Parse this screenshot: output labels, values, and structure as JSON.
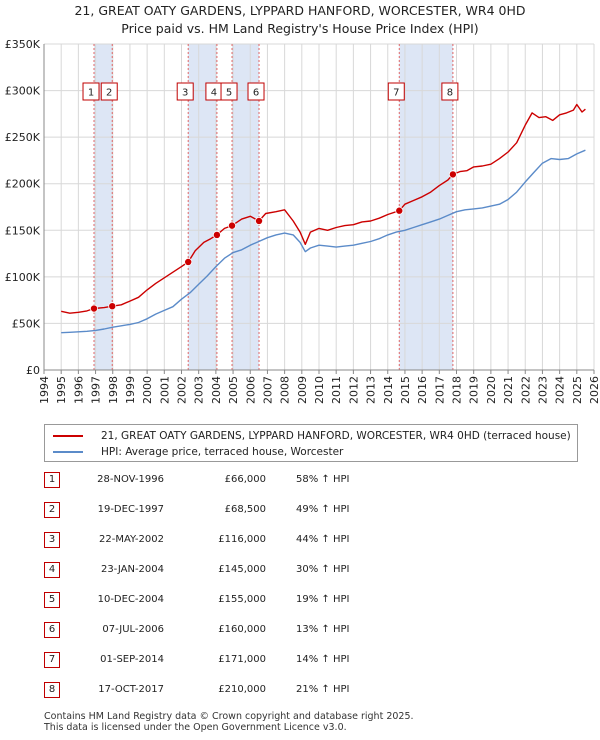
{
  "title_line1": "21, GREAT OATY GARDENS, LYPPARD HANFORD, WORCESTER, WR4 0HD",
  "title_line2": "Price paid vs. HM Land Registry's House Price Index (HPI)",
  "legend": {
    "property_label": "21, GREAT OATY GARDENS, LYPPARD HANFORD, WORCESTER, WR4 0HD (terraced house)",
    "hpi_label": "HPI: Average price, terraced house, Worcester"
  },
  "colors": {
    "property": "#cc0000",
    "hpi": "#5b8bc9",
    "shade": "#dde6f5",
    "vline": "#e06666"
  },
  "sales": [
    {
      "num": "1",
      "date": "28-NOV-1996",
      "price": "£66,000",
      "hpi": "58% ↑ HPI"
    },
    {
      "num": "2",
      "date": "19-DEC-1997",
      "price": "£68,500",
      "hpi": "49% ↑ HPI"
    },
    {
      "num": "3",
      "date": "22-MAY-2002",
      "price": "£116,000",
      "hpi": "44% ↑ HPI"
    },
    {
      "num": "4",
      "date": "23-JAN-2004",
      "price": "£145,000",
      "hpi": "30% ↑ HPI"
    },
    {
      "num": "5",
      "date": "10-DEC-2004",
      "price": "£155,000",
      "hpi": "19% ↑ HPI"
    },
    {
      "num": "6",
      "date": "07-JUL-2006",
      "price": "£160,000",
      "hpi": "13% ↑ HPI"
    },
    {
      "num": "7",
      "date": "01-SEP-2014",
      "price": "£171,000",
      "hpi": "14% ↑ HPI"
    },
    {
      "num": "8",
      "date": "17-OCT-2017",
      "price": "£210,000",
      "hpi": "21% ↑ HPI"
    }
  ],
  "footer_line1": "Contains HM Land Registry data © Crown copyright and database right 2025.",
  "footer_line2": "This data is licensed under the Open Government Licence v3.0.",
  "chart_data": {
    "type": "line",
    "title": "21, GREAT OATY GARDENS, LYPPARD HANFORD, WORCESTER, WR4 0HD — Price paid vs. HM Land Registry's House Price Index (HPI)",
    "xlabel": "",
    "ylabel": "",
    "xlim": [
      1994,
      2026
    ],
    "ylim": [
      0,
      350000
    ],
    "x_ticks": [
      "1994",
      "1995",
      "1996",
      "1997",
      "1998",
      "1999",
      "2000",
      "2001",
      "2002",
      "2003",
      "2004",
      "2005",
      "2006",
      "2007",
      "2008",
      "2009",
      "2010",
      "2011",
      "2012",
      "2013",
      "2014",
      "2015",
      "2016",
      "2017",
      "2018",
      "2019",
      "2020",
      "2021",
      "2022",
      "2023",
      "2024",
      "2025",
      "2026"
    ],
    "y_ticks": [
      {
        "value": 0,
        "label": "£0"
      },
      {
        "value": 50000,
        "label": "£50K"
      },
      {
        "value": 100000,
        "label": "£100K"
      },
      {
        "value": 150000,
        "label": "£150K"
      },
      {
        "value": 200000,
        "label": "£200K"
      },
      {
        "value": 250000,
        "label": "£250K"
      },
      {
        "value": 300000,
        "label": "£300K"
      },
      {
        "value": 350000,
        "label": "£350K"
      }
    ],
    "grid": true,
    "shaded_periods": [
      [
        1996.91,
        1997.97
      ],
      [
        2002.39,
        2004.06
      ],
      [
        2004.94,
        2006.51
      ],
      [
        2014.67,
        2017.79
      ]
    ],
    "sale_markers": [
      {
        "label": "1",
        "x": 1996.91,
        "y": 66000
      },
      {
        "label": "2",
        "x": 1997.97,
        "y": 68500
      },
      {
        "label": "3",
        "x": 2002.39,
        "y": 116000
      },
      {
        "label": "4",
        "x": 2004.06,
        "y": 145000
      },
      {
        "label": "5",
        "x": 2004.94,
        "y": 155000
      },
      {
        "label": "6",
        "x": 2006.51,
        "y": 160000
      },
      {
        "label": "7",
        "x": 2014.67,
        "y": 171000
      },
      {
        "label": "8",
        "x": 2017.79,
        "y": 210000
      }
    ],
    "series": [
      {
        "name": "21, GREAT OATY GARDENS, LYPPARD HANFORD, WORCESTER, WR4 0HD (terraced house)",
        "x": [
          1995.0,
          1995.5,
          1996.0,
          1996.5,
          1996.91,
          1997.5,
          1997.97,
          1998.5,
          1999.0,
          1999.5,
          2000.0,
          2000.5,
          2001.0,
          2001.5,
          2002.0,
          2002.39,
          2002.8,
          2003.3,
          2003.7,
          2004.06,
          2004.5,
          2004.94,
          2005.5,
          2006.0,
          2006.51,
          2006.9,
          2007.5,
          2008.0,
          2008.5,
          2008.9,
          2009.2,
          2009.5,
          2010.0,
          2010.5,
          2011.0,
          2011.5,
          2012.0,
          2012.5,
          2013.0,
          2013.5,
          2014.0,
          2014.67,
          2015.0,
          2015.5,
          2016.0,
          2016.5,
          2017.0,
          2017.5,
          2017.79,
          2018.2,
          2018.6,
          2019.0,
          2019.5,
          2020.0,
          2020.5,
          2021.0,
          2021.5,
          2022.0,
          2022.4,
          2022.8,
          2023.2,
          2023.6,
          2024.0,
          2024.4,
          2024.8,
          2025.0,
          2025.3,
          2025.5
        ],
        "values": [
          63000,
          61000,
          62000,
          63500,
          66000,
          67000,
          68500,
          70000,
          74000,
          78000,
          86000,
          93000,
          99000,
          105000,
          111000,
          116000,
          128000,
          137000,
          141000,
          145000,
          152000,
          155000,
          162000,
          165000,
          160000,
          168000,
          170000,
          172000,
          160000,
          148000,
          135000,
          148000,
          152000,
          150000,
          153000,
          155000,
          156000,
          159000,
          160000,
          163000,
          167000,
          171000,
          178000,
          182000,
          186000,
          191000,
          198000,
          204000,
          210000,
          213000,
          214000,
          218000,
          219000,
          221000,
          227000,
          234000,
          244000,
          263000,
          276000,
          271000,
          272000,
          268000,
          274000,
          276000,
          279000,
          285000,
          277000,
          280000
        ]
      },
      {
        "name": "HPI: Average price, terraced house, Worcester",
        "x": [
          1995.0,
          1995.5,
          1996.0,
          1996.5,
          1997.0,
          1997.5,
          1998.0,
          1998.5,
          1999.0,
          1999.5,
          2000.0,
          2000.5,
          2001.0,
          2001.5,
          2002.0,
          2002.5,
          2003.0,
          2003.5,
          2004.0,
          2004.5,
          2005.0,
          2005.5,
          2006.0,
          2006.5,
          2007.0,
          2007.5,
          2008.0,
          2008.5,
          2008.9,
          2009.2,
          2009.5,
          2010.0,
          2010.5,
          2011.0,
          2011.5,
          2012.0,
          2012.5,
          2013.0,
          2013.5,
          2014.0,
          2014.5,
          2015.0,
          2015.5,
          2016.0,
          2016.5,
          2017.0,
          2017.5,
          2018.0,
          2018.5,
          2019.0,
          2019.5,
          2020.0,
          2020.5,
          2021.0,
          2021.5,
          2022.0,
          2022.5,
          2023.0,
          2023.5,
          2024.0,
          2024.5,
          2025.0,
          2025.5
        ],
        "values": [
          40000,
          40500,
          41000,
          41500,
          42500,
          44000,
          46000,
          47500,
          49000,
          51000,
          55000,
          60000,
          64000,
          68000,
          76000,
          83000,
          92000,
          101000,
          111000,
          120000,
          126000,
          129000,
          134000,
          138000,
          142000,
          145000,
          147000,
          145000,
          137000,
          127000,
          131000,
          134000,
          133000,
          132000,
          133000,
          134000,
          136000,
          138000,
          141000,
          145000,
          148000,
          150000,
          153000,
          156000,
          159000,
          162000,
          166000,
          170000,
          172000,
          173000,
          174000,
          176000,
          178000,
          183000,
          191000,
          202000,
          212000,
          222000,
          227000,
          226000,
          227000,
          232000,
          236000
        ]
      }
    ]
  }
}
